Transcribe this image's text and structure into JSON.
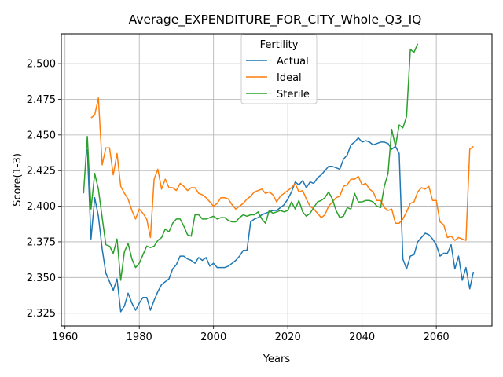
{
  "chart_data": {
    "type": "line",
    "title": "Average_EXPENDITURE_FOR_CITY_Whole_Q3_IQ",
    "xlabel": "Years",
    "ylabel": "Score(1-3)",
    "xlim": [
      1959,
      2075
    ],
    "ylim": [
      2.316,
      2.521
    ],
    "xticks": [
      1960,
      1980,
      2000,
      2020,
      2040,
      2060
    ],
    "yticks": [
      2.325,
      2.35,
      2.375,
      2.4,
      2.425,
      2.45,
      2.475,
      2.5
    ],
    "ytick_labels": [
      "2.325",
      "2.350",
      "2.375",
      "2.400",
      "2.425",
      "2.450",
      "2.475",
      "2.500"
    ],
    "grid": true,
    "legend": {
      "title": "Fertility",
      "placement": "upper-center"
    },
    "colors": {
      "Actual": "#1f77b4",
      "Ideal": "#ff7f0e",
      "Sterile": "#2ca02c"
    },
    "series": [
      {
        "name": "Actual",
        "x": [
          1966,
          1967,
          1968,
          1969,
          1970,
          1971,
          1972,
          1973,
          1974,
          1975,
          1976,
          1977,
          1978,
          1979,
          1980,
          1981,
          1982,
          1983,
          1984,
          1985,
          1986,
          1987,
          1988,
          1989,
          1990,
          1991,
          1992,
          1993,
          1994,
          1995,
          1996,
          1997,
          1998,
          1999,
          2000,
          2001,
          2002,
          2003,
          2004,
          2005,
          2006,
          2007,
          2008,
          2009,
          2010,
          2011,
          2012,
          2013,
          2014,
          2015,
          2016,
          2017,
          2018,
          2019,
          2020,
          2021,
          2022,
          2023,
          2024,
          2025,
          2026,
          2027,
          2028,
          2029,
          2030,
          2031,
          2032,
          2033,
          2034,
          2035,
          2036,
          2037,
          2038,
          2039,
          2040,
          2041,
          2042,
          2043,
          2044,
          2045,
          2046,
          2047,
          2048,
          2049,
          2050,
          2051,
          2052,
          2053,
          2054,
          2055,
          2056,
          2057,
          2058,
          2059,
          2060,
          2061,
          2062,
          2063,
          2064,
          2065,
          2066,
          2067,
          2068,
          2069,
          2070
        ],
        "values": [
          2.44,
          2.377,
          2.406,
          2.393,
          2.37,
          2.353,
          2.347,
          2.341,
          2.349,
          2.326,
          2.33,
          2.339,
          2.332,
          2.327,
          2.332,
          2.336,
          2.336,
          2.327,
          2.334,
          2.34,
          2.345,
          2.347,
          2.349,
          2.356,
          2.359,
          2.365,
          2.365,
          2.363,
          2.362,
          2.36,
          2.364,
          2.362,
          2.364,
          2.358,
          2.36,
          2.357,
          2.357,
          2.357,
          2.358,
          2.36,
          2.362,
          2.365,
          2.369,
          2.369,
          2.389,
          2.391,
          2.392,
          2.394,
          2.395,
          2.396,
          2.397,
          2.397,
          2.399,
          2.401,
          2.405,
          2.41,
          2.417,
          2.415,
          2.418,
          2.413,
          2.417,
          2.416,
          2.42,
          2.422,
          2.425,
          2.428,
          2.428,
          2.427,
          2.426,
          2.433,
          2.436,
          2.443,
          2.445,
          2.448,
          2.445,
          2.446,
          2.445,
          2.443,
          2.444,
          2.445,
          2.445,
          2.444,
          2.44,
          2.442,
          2.437,
          2.363,
          2.356,
          2.365,
          2.366,
          2.375,
          2.378,
          2.381,
          2.38,
          2.377,
          2.373,
          2.365,
          2.367,
          2.367,
          2.373,
          2.356,
          2.365,
          2.348,
          2.357,
          2.342,
          2.354
        ]
      },
      {
        "name": "Ideal",
        "x": [
          1967,
          1968,
          1969,
          1970,
          1971,
          1972,
          1973,
          1974,
          1975,
          1976,
          1977,
          1978,
          1979,
          1980,
          1981,
          1982,
          1983,
          1984,
          1985,
          1986,
          1987,
          1988,
          1989,
          1990,
          1991,
          1992,
          1993,
          1994,
          1995,
          1996,
          1997,
          1998,
          1999,
          2000,
          2001,
          2002,
          2003,
          2004,
          2005,
          2006,
          2007,
          2008,
          2009,
          2010,
          2011,
          2012,
          2013,
          2014,
          2015,
          2016,
          2017,
          2018,
          2019,
          2020,
          2021,
          2022,
          2023,
          2024,
          2025,
          2026,
          2027,
          2028,
          2029,
          2030,
          2031,
          2032,
          2033,
          2034,
          2035,
          2036,
          2037,
          2038,
          2039,
          2040,
          2041,
          2042,
          2043,
          2044,
          2045,
          2046,
          2047,
          2048,
          2049,
          2050,
          2051,
          2052,
          2053,
          2054,
          2055,
          2056,
          2057,
          2058,
          2059,
          2060,
          2061,
          2062,
          2063,
          2064,
          2065,
          2066,
          2067,
          2068,
          2069,
          2070
        ],
        "values": [
          2.462,
          2.464,
          2.476,
          2.429,
          2.441,
          2.441,
          2.422,
          2.437,
          2.414,
          2.409,
          2.405,
          2.397,
          2.391,
          2.398,
          2.395,
          2.391,
          2.378,
          2.419,
          2.426,
          2.412,
          2.419,
          2.413,
          2.413,
          2.411,
          2.416,
          2.414,
          2.411,
          2.413,
          2.413,
          2.409,
          2.408,
          2.406,
          2.403,
          2.4,
          2.402,
          2.406,
          2.406,
          2.405,
          2.401,
          2.398,
          2.4,
          2.402,
          2.405,
          2.407,
          2.41,
          2.411,
          2.412,
          2.409,
          2.41,
          2.408,
          2.403,
          2.407,
          2.409,
          2.411,
          2.413,
          2.416,
          2.41,
          2.411,
          2.405,
          2.4,
          2.398,
          2.395,
          2.392,
          2.394,
          2.4,
          2.403,
          2.406,
          2.407,
          2.414,
          2.415,
          2.419,
          2.419,
          2.421,
          2.415,
          2.416,
          2.412,
          2.41,
          2.404,
          2.404,
          2.399,
          2.397,
          2.398,
          2.388,
          2.388,
          2.391,
          2.396,
          2.402,
          2.403,
          2.41,
          2.413,
          2.412,
          2.414,
          2.404,
          2.404,
          2.389,
          2.387,
          2.378,
          2.379,
          2.376,
          2.378,
          2.377,
          2.376,
          2.44,
          2.442
        ]
      },
      {
        "name": "Sterile",
        "x": [
          1965,
          1966,
          1967,
          1968,
          1969,
          1970,
          1971,
          1972,
          1973,
          1974,
          1975,
          1976,
          1977,
          1978,
          1979,
          1980,
          1981,
          1982,
          1983,
          1984,
          1985,
          1986,
          1987,
          1988,
          1989,
          1990,
          1991,
          1992,
          1993,
          1994,
          1995,
          1996,
          1997,
          1998,
          1999,
          2000,
          2001,
          2002,
          2003,
          2004,
          2005,
          2006,
          2007,
          2008,
          2009,
          2010,
          2011,
          2012,
          2013,
          2014,
          2015,
          2016,
          2017,
          2018,
          2019,
          2020,
          2021,
          2022,
          2023,
          2024,
          2025,
          2026,
          2027,
          2028,
          2029,
          2030,
          2031,
          2032,
          2033,
          2034,
          2035,
          2036,
          2037,
          2038,
          2039,
          2040,
          2041,
          2042,
          2043,
          2044,
          2045,
          2046,
          2047,
          2048,
          2049,
          2050,
          2051,
          2052,
          2053,
          2054,
          2055
        ],
        "values": [
          2.409,
          2.449,
          2.398,
          2.423,
          2.412,
          2.392,
          2.373,
          2.372,
          2.367,
          2.377,
          2.348,
          2.368,
          2.374,
          2.363,
          2.357,
          2.36,
          2.366,
          2.372,
          2.371,
          2.372,
          2.376,
          2.378,
          2.384,
          2.382,
          2.388,
          2.391,
          2.391,
          2.386,
          2.38,
          2.379,
          2.394,
          2.394,
          2.391,
          2.391,
          2.392,
          2.393,
          2.391,
          2.392,
          2.392,
          2.39,
          2.389,
          2.389,
          2.392,
          2.394,
          2.393,
          2.394,
          2.394,
          2.396,
          2.391,
          2.388,
          2.397,
          2.395,
          2.396,
          2.397,
          2.396,
          2.397,
          2.403,
          2.398,
          2.404,
          2.396,
          2.393,
          2.395,
          2.399,
          2.403,
          2.404,
          2.406,
          2.41,
          2.405,
          2.397,
          2.392,
          2.393,
          2.399,
          2.398,
          2.409,
          2.403,
          2.403,
          2.404,
          2.404,
          2.403,
          2.4,
          2.399,
          2.414,
          2.423,
          2.454,
          2.442,
          2.457,
          2.455,
          2.463,
          2.51,
          2.508,
          2.514
        ]
      }
    ]
  }
}
